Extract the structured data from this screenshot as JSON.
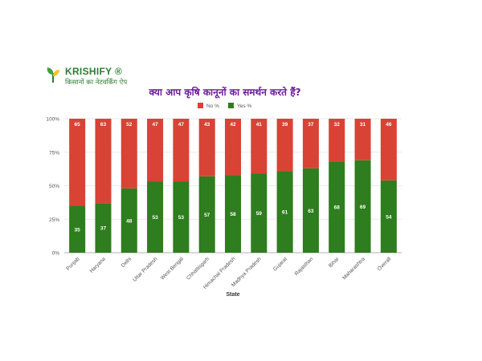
{
  "branding": {
    "name": "KRISHIFY ®",
    "tagline": "किसानों का नेटवर्किंग ऐप"
  },
  "colors": {
    "no": "#d84335",
    "yes": "#2e7d1e",
    "title": "#6a1b9a",
    "brand": "#2e7d32"
  },
  "chart_data": {
    "type": "bar",
    "stacked": true,
    "title": "क्या आप कृषि कानूनों का समर्थन करते हैं?",
    "xlabel": "State",
    "ylabel": "",
    "ylim": [
      0,
      100
    ],
    "yticks": [
      "0%",
      "25%",
      "50%",
      "75%",
      "100%"
    ],
    "grid": true,
    "legend_position": "top",
    "categories": [
      "Punjab",
      "Haryana",
      "Delhi",
      "Uttar Pradesh",
      "West Bengal",
      "Chhattisgarh",
      "Himachal Pradesh",
      "Madhya Pradesh",
      "Gujarat",
      "Rajasthan",
      "Bihar",
      "Maharashtra",
      "Overall"
    ],
    "series": [
      {
        "name": "No %",
        "values": [
          65,
          63,
          52,
          47,
          47,
          43,
          42,
          41,
          39,
          37,
          32,
          31,
          46
        ]
      },
      {
        "name": "Yes %",
        "values": [
          35,
          37,
          48,
          53,
          53,
          57,
          58,
          59,
          61,
          63,
          68,
          69,
          54
        ]
      }
    ]
  }
}
